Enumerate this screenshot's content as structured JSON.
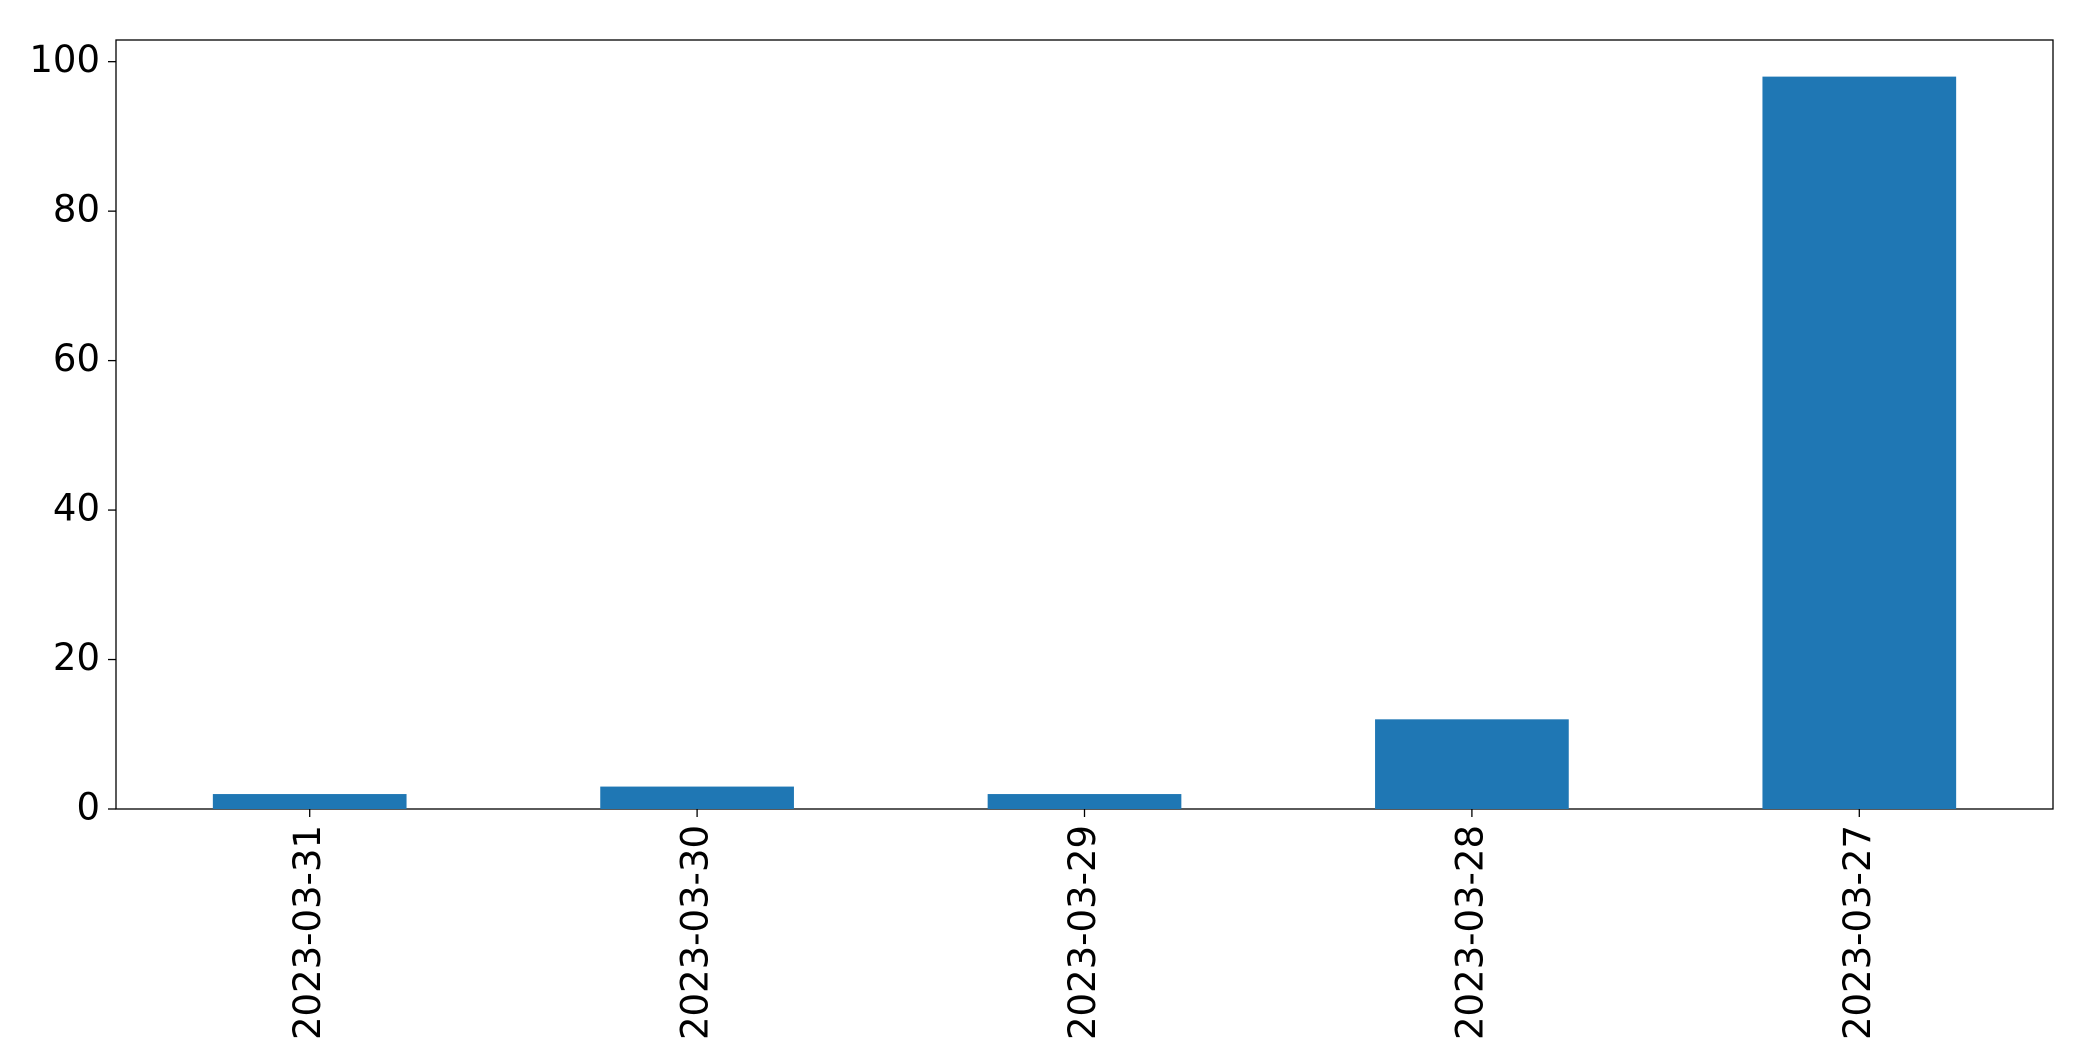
{
  "chart_data": {
    "type": "bar",
    "categories": [
      "2023-03-31",
      "2023-03-30",
      "2023-03-29",
      "2023-03-28",
      "2023-03-27"
    ],
    "values": [
      2,
      3,
      2,
      12,
      98
    ],
    "color": "#1f77b4",
    "ylim": [
      0,
      102.9
    ],
    "yticks": [
      0,
      20,
      40,
      60,
      80,
      100
    ],
    "grid": false
  }
}
